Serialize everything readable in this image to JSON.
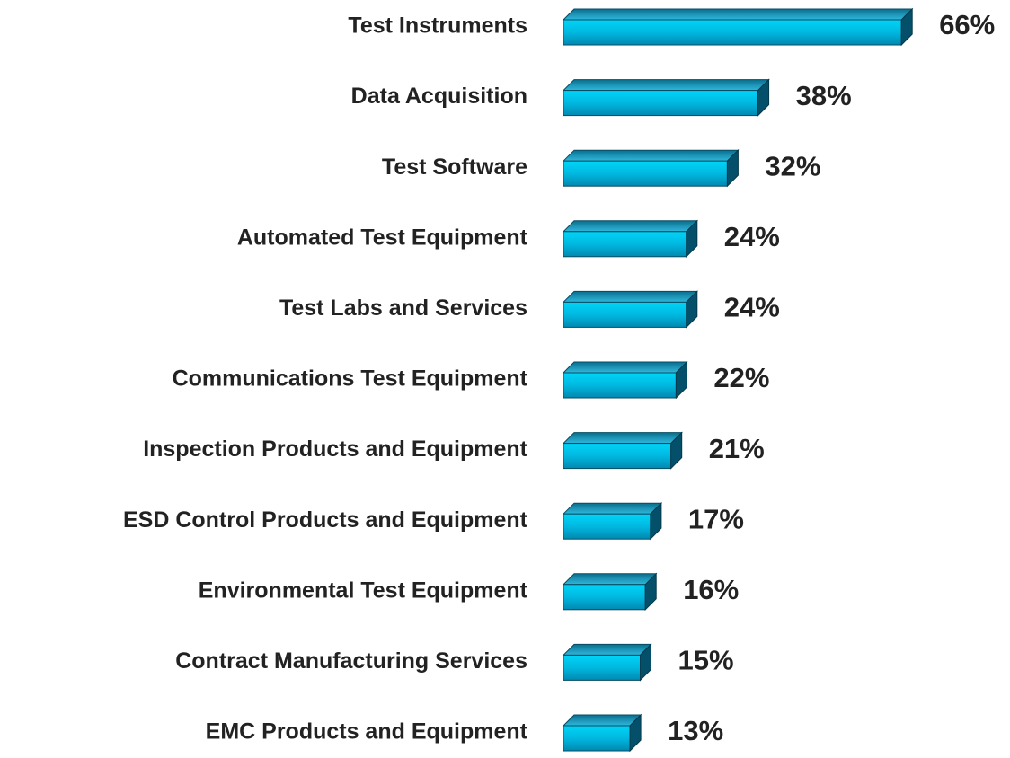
{
  "chart_data": {
    "type": "hbar3d",
    "categories": [
      "Test Instruments",
      "Data Acquisition",
      "Test Software",
      "Automated Test Equipment",
      "Test Labs and Services",
      "Communications Test Equipment",
      "Inspection Products and Equipment",
      "ESD Control Products and Equipment",
      "Environmental Test Equipment",
      "Contract Manufacturing Services",
      "EMC Products and Equipment"
    ],
    "values": [
      66,
      38,
      32,
      24,
      24,
      22,
      21,
      17,
      16,
      15,
      13
    ],
    "value_labels": [
      "66%",
      "38%",
      "32%",
      "24%",
      "24%",
      "22%",
      "21%",
      "17%",
      "16%",
      "15%",
      "13%"
    ],
    "color": "#00b8e0"
  }
}
